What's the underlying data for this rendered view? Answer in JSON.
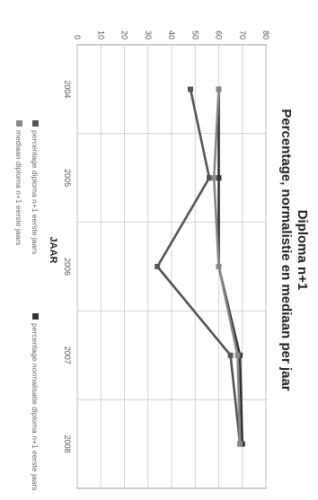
{
  "chart_data": {
    "type": "line",
    "title": "Diploma n+1",
    "subtitle": "Percentage, normalistie en mediaan per jaar",
    "xlabel": "JAAR",
    "ylabel": "",
    "categories": [
      "2004",
      "2005",
      "2006",
      "2007",
      "2008"
    ],
    "ylim": [
      0,
      80
    ],
    "yticks": [
      0,
      10,
      20,
      30,
      40,
      50,
      60,
      70,
      80
    ],
    "grid": true,
    "legend_position": "bottom",
    "series": [
      {
        "name": "percentage diploma n+1 eerste jaars",
        "values": [
          48,
          56,
          34,
          65,
          69
        ],
        "color": "#555555"
      },
      {
        "name": "percentage normalisatie diploma n+1 eerste jaars",
        "values": [
          60,
          60,
          60,
          69,
          70
        ],
        "color": "#333333"
      },
      {
        "name": "mediaan diploma n+1 eerste jaars",
        "values": [
          60,
          58,
          60,
          68,
          69
        ],
        "color": "#888888"
      }
    ]
  }
}
